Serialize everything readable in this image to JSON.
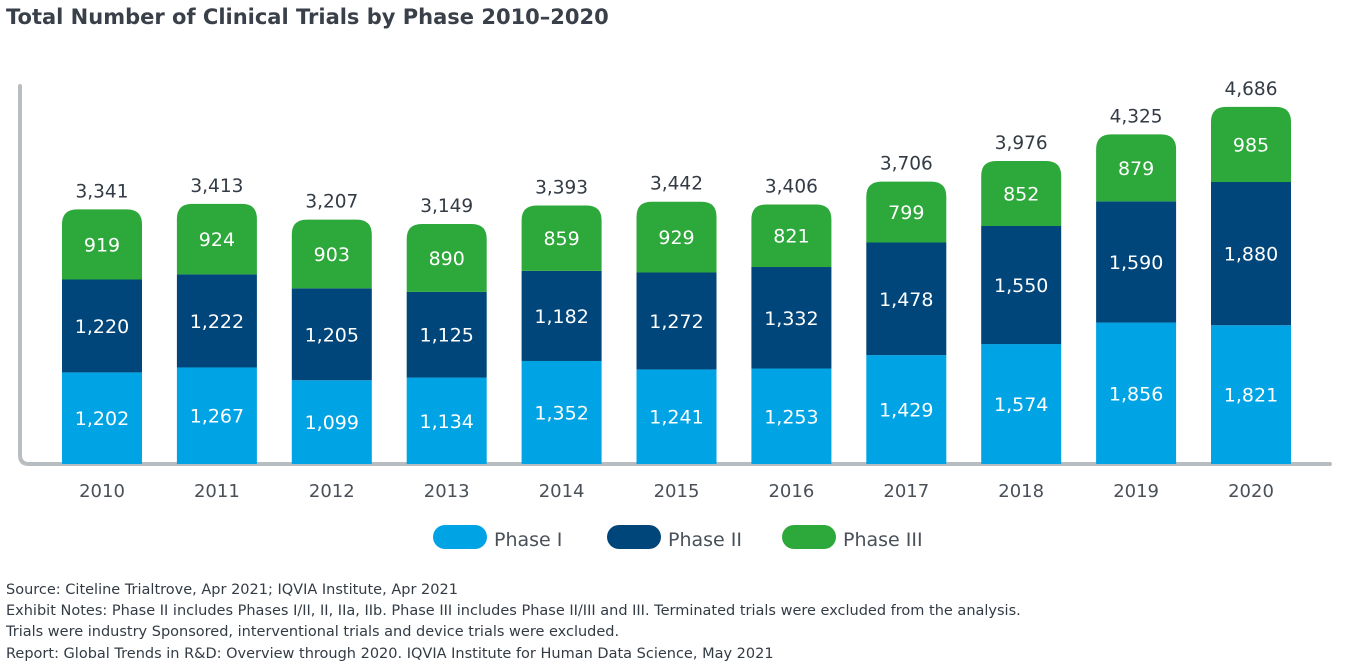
{
  "title": "Total Number of Clinical Trials by Phase 2010–2020",
  "chart_data": {
    "type": "bar",
    "stacked": true,
    "categories": [
      "2010",
      "2011",
      "2012",
      "2013",
      "2014",
      "2015",
      "2016",
      "2017",
      "2018",
      "2019",
      "2020"
    ],
    "series": [
      {
        "name": "Phase I",
        "color": "#00a4e4",
        "values": [
          1202,
          1267,
          1099,
          1134,
          1352,
          1241,
          1253,
          1429,
          1574,
          1856,
          1821
        ],
        "labels": [
          "1,202",
          "1,267",
          "1,099",
          "1,134",
          "1,352",
          "1,241",
          "1,253",
          "1,429",
          "1,574",
          "1,856",
          "1,821"
        ]
      },
      {
        "name": "Phase II",
        "color": "#00467a",
        "values": [
          1220,
          1222,
          1205,
          1125,
          1182,
          1272,
          1332,
          1478,
          1550,
          1590,
          1880
        ],
        "labels": [
          "1,220",
          "1,222",
          "1,205",
          "1,125",
          "1,182",
          "1,272",
          "1,332",
          "1,478",
          "1,550",
          "1,590",
          "1,880"
        ]
      },
      {
        "name": "Phase III",
        "color": "#2da83a",
        "values": [
          919,
          924,
          903,
          890,
          859,
          929,
          821,
          799,
          852,
          879,
          985
        ],
        "labels": [
          "919",
          "924",
          "903",
          "890",
          "859",
          "929",
          "821",
          "799",
          "852",
          "879",
          "985"
        ]
      }
    ],
    "totals": [
      3341,
      3413,
      3207,
      3149,
      3393,
      3442,
      3406,
      3706,
      3976,
      4325,
      4686
    ],
    "total_labels": [
      "3,341",
      "3,413",
      "3,207",
      "3,149",
      "3,393",
      "3,442",
      "3,406",
      "3,706",
      "3,976",
      "4,325",
      "4,686"
    ],
    "ylim": [
      0,
      5000
    ],
    "grid": false,
    "legend_position": "bottom-center"
  },
  "notes": [
    "Source: Citeline Trialtrove, Apr 2021; IQVIA Institute, Apr 2021",
    "Exhibit Notes: Phase II includes Phases I/II, II, IIa, IIb. Phase III includes Phase II/III and III. Terminated trials were excluded from the analysis.",
    "Trials were industry Sponsored, interventional trials and device trials were excluded.",
    "Report: Global Trends in R&D: Overview through 2020. IQVIA Institute for Human Data Science, May 2021"
  ]
}
